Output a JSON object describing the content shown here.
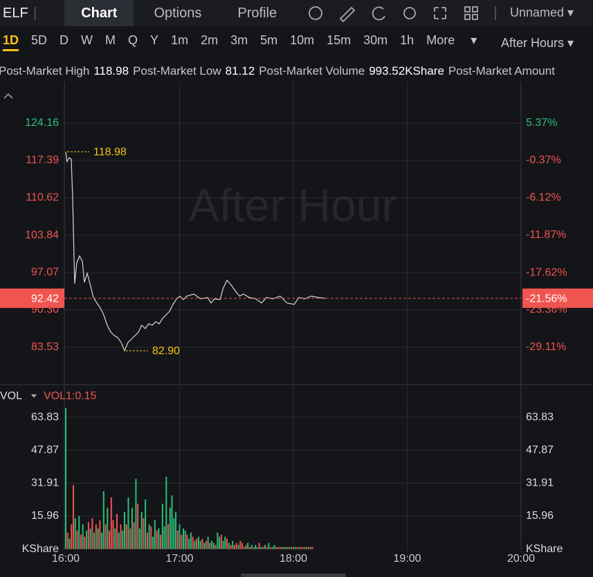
{
  "header": {
    "symbol": "ELF",
    "tabs": [
      "Chart",
      "Options",
      "Profile"
    ],
    "layout": "Unnamed"
  },
  "intervals": [
    "1D",
    "5D",
    "D",
    "W",
    "M",
    "Q",
    "Y",
    "1m",
    "2m",
    "3m",
    "5m",
    "10m",
    "15m",
    "30m",
    "1h"
  ],
  "more": "More",
  "session": "After Hours",
  "stats": [
    {
      "label": "Post-Market High",
      "value": "118.98"
    },
    {
      "label": "Post-Market Low",
      "value": "81.12"
    },
    {
      "label": "Post-Market Volume",
      "value": "993.52KShare"
    },
    {
      "label": "Post-Market Amount",
      "value": ""
    }
  ],
  "chart_data": [
    {
      "type": "line",
      "watermark": "After Hour",
      "color": "#d9d9d9",
      "up_color": "#2dbd7a",
      "down_color": "#f0544f",
      "annotation_color": "#f5c518",
      "x": [
        960,
        960.7,
        961.8,
        962.9,
        963.7,
        964.7,
        965.8,
        967.3,
        968.8,
        969.8,
        971.3,
        972.8,
        974.6,
        976.4,
        978.2,
        980,
        981.9,
        983.7,
        985.6,
        987.4,
        989.2,
        991,
        992.8,
        994.7,
        996.5,
        998.3,
        1000.1,
        1001.9,
        1003.7,
        1005.6,
        1007.4,
        1009.3,
        1011.1,
        1012.9,
        1014.7,
        1016.5,
        1018.4,
        1020.2,
        1022,
        1023.8,
        1027.5,
        1031.1,
        1034.8,
        1036.6,
        1038.4,
        1041.4,
        1042.8,
        1045,
        1047.2,
        1049.3,
        1051.6,
        1053.7,
        1056.7,
        1060.3,
        1063.2,
        1065.8,
        1069.4,
        1073,
        1076.7,
        1080.4,
        1082.9,
        1085.8,
        1089.5,
        1093.1,
        1096.8
      ],
      "values": [
        118.98,
        117.22,
        117.89,
        117.64,
        110.11,
        95.06,
        98.82,
        100.08,
        99.08,
        95.31,
        96.95,
        95.06,
        92.56,
        91.55,
        90.68,
        89.42,
        87.54,
        86.29,
        85.66,
        85.28,
        84.41,
        82.9,
        84.41,
        85.03,
        85.66,
        86.29,
        87.54,
        86.91,
        87.79,
        87.54,
        88.17,
        87.79,
        88.8,
        89.42,
        90.05,
        91.3,
        92.31,
        92.81,
        92.18,
        92.81,
        93.18,
        92.31,
        92.56,
        91.55,
        92.31,
        92.18,
        94.06,
        95.69,
        94.81,
        93.81,
        92.81,
        93.18,
        92.56,
        92.31,
        91.55,
        92.56,
        92.31,
        92.81,
        91.55,
        91.3,
        92.56,
        92.31,
        92.81,
        92.56,
        92.42
      ],
      "xlim": [
        960,
        1200
      ],
      "ylim": [
        76.88,
        130.81
      ],
      "yticks": [
        124.16,
        117.39,
        110.62,
        103.84,
        97.07,
        {
          "value": 90.3,
          "label": "90.30"
        },
        83.53
      ],
      "y2lim": [
        -34.75,
        11.01
      ],
      "y2ticks": [
        {
          "value": 5.37,
          "label": "5.37%"
        },
        {
          "value": -0.37,
          "label": "-0.37%"
        },
        {
          "value": -6.12,
          "label": "-6.12%"
        },
        {
          "value": -11.87,
          "label": "-11.87%"
        },
        {
          "value": -17.62,
          "label": "-17.62%"
        },
        {
          "value": -23.36,
          "label": "-23.36%"
        },
        {
          "value": -29.11,
          "label": "-29.11%"
        }
      ],
      "grid": true,
      "last_price": 92.42,
      "last_change": {
        "value": -21.56,
        "label": "-21.56%"
      },
      "annotations": [
        118.98,
        {
          "value": 82.9,
          "label": "82.90"
        }
      ]
    },
    {
      "type": "bar",
      "indicator": "VOL",
      "indicator_value": "VOL1:0.15",
      "unit": "KShare",
      "up_color": "#2dbd7a",
      "down_color": "#f0544f",
      "x": [
        960,
        961,
        962,
        963,
        964,
        965,
        966,
        967,
        968,
        969,
        970,
        971,
        972,
        973,
        974,
        975,
        976,
        977,
        978,
        979,
        980,
        981,
        982,
        983,
        984,
        985,
        986,
        987,
        988,
        989,
        990,
        991,
        992,
        993,
        994,
        995,
        996,
        997,
        998,
        999,
        1000,
        1001,
        1002,
        1003,
        1004,
        1005,
        1006,
        1007,
        1008,
        1009,
        1010,
        1011,
        1012,
        1013,
        1014,
        1015,
        1016,
        1017,
        1018,
        1019,
        1020,
        1021,
        1022,
        1023,
        1024,
        1025,
        1026,
        1027,
        1028,
        1029,
        1030,
        1031,
        1032,
        1033,
        1034,
        1035,
        1036,
        1037,
        1038,
        1039,
        1040,
        1041,
        1042,
        1043,
        1044,
        1045,
        1046,
        1047,
        1048,
        1049,
        1050,
        1051,
        1052,
        1053,
        1054,
        1055,
        1056,
        1057,
        1058,
        1059,
        1060,
        1061,
        1062,
        1063,
        1064,
        1065,
        1066,
        1067,
        1068,
        1069,
        1070,
        1071,
        1072,
        1073,
        1074,
        1075,
        1076,
        1077,
        1078,
        1079,
        1080,
        1081,
        1082,
        1083,
        1084,
        1085,
        1086,
        1087,
        1088,
        1089,
        1090
      ],
      "values": [
        68.2,
        8,
        5,
        12,
        31,
        15,
        9,
        16,
        7,
        12,
        6,
        9,
        13,
        10,
        15,
        8,
        12,
        10,
        14,
        8,
        28,
        12,
        20,
        9,
        25,
        14,
        10,
        17,
        8,
        12,
        9,
        18,
        12,
        25,
        10,
        20,
        13,
        34,
        22,
        10,
        18,
        15,
        24,
        8,
        12,
        11,
        6,
        14,
        9,
        10,
        7,
        22,
        11,
        35,
        12,
        20,
        26,
        15,
        18,
        9,
        12,
        7,
        10,
        9,
        7,
        5,
        8,
        6,
        4,
        5,
        6,
        4,
        5,
        3,
        4,
        6,
        3,
        4,
        3,
        2,
        8,
        6,
        7,
        4,
        6,
        5,
        3,
        2,
        4,
        2,
        3,
        2,
        4,
        3,
        1,
        2,
        3,
        1,
        2,
        1,
        2,
        1,
        3,
        1,
        1,
        2,
        1,
        3,
        1,
        1,
        2,
        1,
        1,
        1,
        1,
        1,
        1,
        1,
        1,
        1,
        1,
        1,
        1,
        1,
        1,
        1,
        1,
        1,
        1,
        1,
        1
      ],
      "up": [
        true,
        false,
        true,
        false,
        false,
        true,
        false,
        true,
        false,
        true,
        false,
        true,
        false,
        true,
        false,
        true,
        false,
        true,
        false,
        true,
        true,
        false,
        true,
        false,
        false,
        false,
        true,
        false,
        true,
        false,
        true,
        true,
        false,
        true,
        false,
        true,
        false,
        true,
        false,
        true,
        true,
        false,
        true,
        false,
        true,
        false,
        true,
        true,
        false,
        true,
        false,
        true,
        true,
        true,
        false,
        true,
        true,
        true,
        true,
        false,
        true,
        false,
        true,
        true,
        false,
        true,
        true,
        false,
        true,
        false,
        true,
        true,
        false,
        true,
        false,
        true,
        false,
        true,
        true,
        false,
        true,
        true,
        false,
        true,
        true,
        false,
        true,
        false,
        true,
        false,
        false,
        true,
        false,
        false,
        true,
        false,
        true,
        false,
        true,
        false,
        true,
        true,
        false,
        true,
        false,
        true,
        false,
        true,
        false,
        true,
        true,
        false,
        false,
        true,
        false,
        true,
        false,
        true,
        false,
        true,
        false,
        true,
        false,
        true,
        false,
        false,
        true,
        false,
        false,
        true,
        false
      ],
      "xlim": [
        960,
        1200
      ],
      "xticks": [
        {
          "value": 960,
          "label": "16:00"
        },
        {
          "value": 1020,
          "label": "17:00"
        },
        {
          "value": 1080,
          "label": "18:00"
        },
        {
          "value": 1140,
          "label": "19:00"
        },
        {
          "value": 1200,
          "label": "20:00"
        }
      ],
      "ylim": [
        0,
        79.24
      ],
      "yticks": [
        15.96,
        31.91,
        47.87,
        63.83
      ],
      "grid": true
    }
  ]
}
